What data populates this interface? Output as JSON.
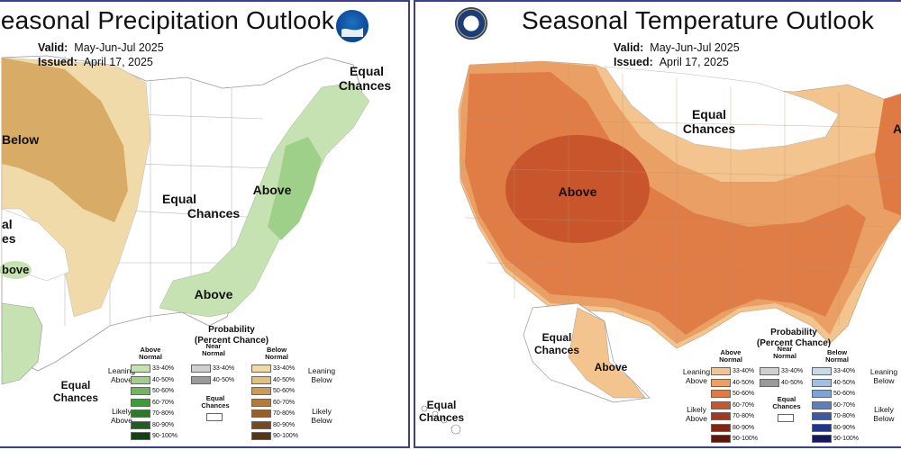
{
  "left_panel": {
    "title": "Seasonal Precipitation Outlook",
    "valid_label": "Valid:",
    "valid_value": "May-Jun-Jul 2025",
    "issued_label": "Issued:",
    "issued_value": "April 17, 2025",
    "logo": "noaa-logo",
    "map_labels": {
      "below": "Below",
      "equal_chances_center": [
        "Equal",
        "Chances"
      ],
      "above_east": "Above",
      "above_southeast": "Above",
      "equal_chances_ne": [
        "Equal",
        "Chances"
      ],
      "equal_chances_west": [
        "al",
        "es"
      ],
      "above_west": "bove",
      "equal_chances_bottom": [
        "Equal",
        "Chances"
      ]
    },
    "legend": {
      "heading": [
        "Probability",
        "(Percent Chance)"
      ],
      "col_above": [
        "Above",
        "Normal"
      ],
      "col_near": [
        "Near",
        "Normal"
      ],
      "col_below": [
        "Below",
        "Normal"
      ],
      "leaning_above": [
        "Leaning",
        "Above"
      ],
      "likely_above": [
        "Likely",
        "Above"
      ],
      "leaning_below": [
        "Leaning",
        "Below"
      ],
      "likely_below": [
        "Likely",
        "Below"
      ],
      "equal_chances": [
        "Equal",
        "Chances"
      ],
      "ranges": [
        "33-40%",
        "40-50%",
        "50-60%",
        "60-70%",
        "70-80%",
        "80-90%",
        "90-100%"
      ],
      "near_ranges": [
        "33-40%",
        "40-50%"
      ],
      "above_colors": [
        "#c6e2b3",
        "#9fd089",
        "#6cb85a",
        "#3f9a3a",
        "#2c7a2a",
        "#1f5e1f",
        "#11420f"
      ],
      "near_colors": [
        "#cfcfcf",
        "#9a9a9a"
      ],
      "below_colors": [
        "#f0d9a5",
        "#e3bf7a",
        "#cf9a52",
        "#b5793a",
        "#985f2a",
        "#7a481f",
        "#5a3313"
      ]
    }
  },
  "right_panel": {
    "title": "Seasonal Temperature Outlook",
    "valid_label": "Valid:",
    "valid_value": "May-Jun-Jul 2025",
    "issued_label": "Issued:",
    "issued_value": "April 17, 2025",
    "logo": "doc-seal",
    "map_labels": {
      "above_main": "Above",
      "equal_chances_north": [
        "Equal",
        "Chances"
      ],
      "equal_chances_alaska": [
        "Equal",
        "Chances"
      ],
      "above_alaska": "Above",
      "equal_chances_hawaii": [
        "Equal",
        "Chances"
      ],
      "above_ne_cut": "A"
    },
    "legend": {
      "heading": [
        "Probability",
        "(Percent Chance)"
      ],
      "col_above": [
        "Above",
        "Normal"
      ],
      "col_near": [
        "Near",
        "Normal"
      ],
      "col_below": [
        "Below",
        "Normal"
      ],
      "leaning_above": [
        "Leaning",
        "Above"
      ],
      "likely_above": [
        "Likely",
        "Above"
      ],
      "leaning_below": [
        "Leaning",
        "Below"
      ],
      "likely_below": [
        "Likely",
        "Below"
      ],
      "equal_chances": [
        "Equal",
        "Chances"
      ],
      "ranges": [
        "33-40%",
        "40-50%",
        "50-60%",
        "60-70%",
        "70-80%",
        "80-90%",
        "90-100%"
      ],
      "near_ranges": [
        "33-40%",
        "40-50%"
      ],
      "above_colors": [
        "#f4c48f",
        "#eaa065",
        "#df7a44",
        "#c8552c",
        "#a8361c",
        "#832413",
        "#5c160b"
      ],
      "near_colors": [
        "#cfcfcf",
        "#9a9a9a"
      ],
      "below_colors": [
        "#c6d8ee",
        "#a3c0e4",
        "#7ea3d6",
        "#5a80c2",
        "#3a5aa8",
        "#23358a",
        "#14185e"
      ]
    }
  }
}
